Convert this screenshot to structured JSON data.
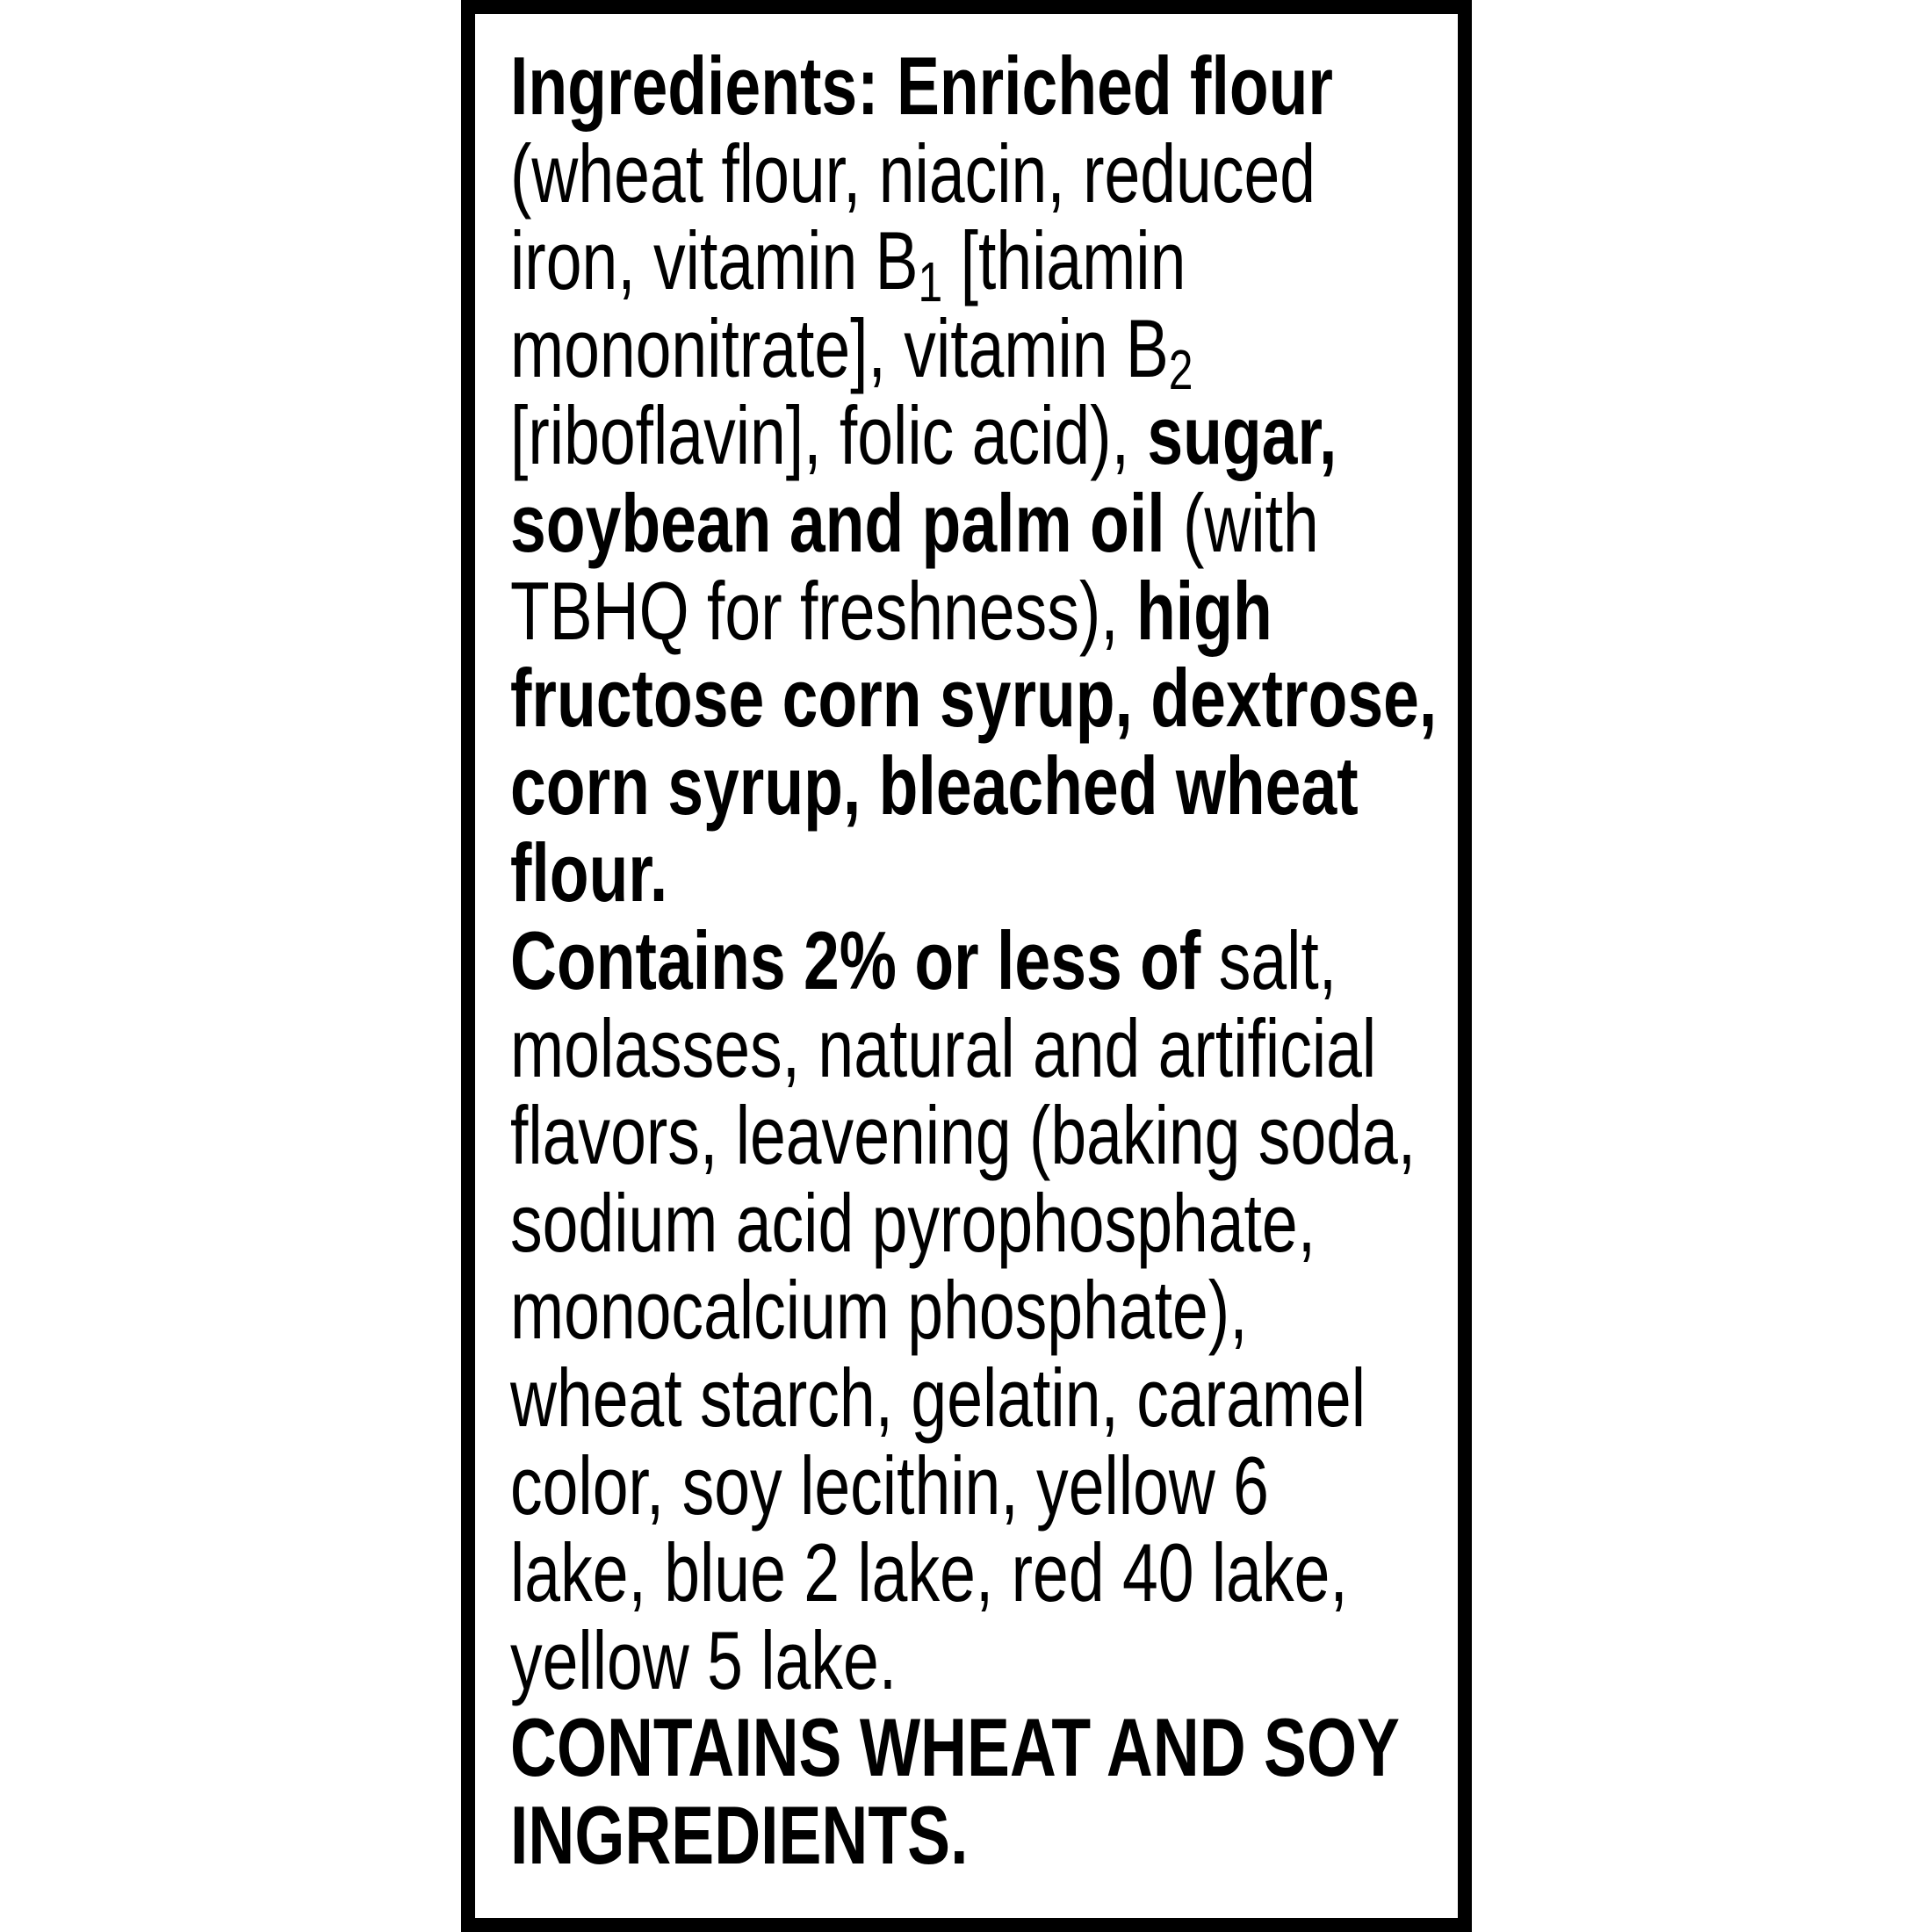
{
  "label": {
    "name": "ingredients-panel",
    "colors": {
      "text": "#000000",
      "background": "#ffffff",
      "border": "#000000"
    },
    "lines": [
      {
        "segments": [
          {
            "text": "Ingredients: Enriched flour",
            "bold": true
          }
        ]
      },
      {
        "segments": [
          {
            "text": "(wheat flour, niacin, reduced",
            "bold": false
          }
        ]
      },
      {
        "segments": [
          {
            "text": "iron, vitamin B",
            "bold": false
          },
          {
            "text": "1",
            "bold": false,
            "sub": true
          },
          {
            "text": " [thiamin",
            "bold": false
          }
        ]
      },
      {
        "segments": [
          {
            "text": "mononitrate], vitamin B",
            "bold": false
          },
          {
            "text": "2",
            "bold": false,
            "sub": true
          }
        ]
      },
      {
        "segments": [
          {
            "text": "[riboflavin], folic acid), ",
            "bold": false
          },
          {
            "text": "sugar,",
            "bold": true
          }
        ]
      },
      {
        "segments": [
          {
            "text": "soybean and palm oil",
            "bold": true
          },
          {
            "text": " (with",
            "bold": false
          }
        ]
      },
      {
        "segments": [
          {
            "text": "TBHQ for freshness), ",
            "bold": false
          },
          {
            "text": "high",
            "bold": true
          }
        ]
      },
      {
        "segments": [
          {
            "text": "fructose corn syrup, dextrose,",
            "bold": true
          }
        ]
      },
      {
        "segments": [
          {
            "text": "corn syrup, bleached wheat",
            "bold": true
          }
        ]
      },
      {
        "segments": [
          {
            "text": "flour.",
            "bold": true
          }
        ]
      },
      {
        "segments": [
          {
            "text": "Contains 2% or less of",
            "bold": true
          },
          {
            "text": " salt,",
            "bold": false
          }
        ]
      },
      {
        "segments": [
          {
            "text": "molasses, natural and artificial",
            "bold": false
          }
        ]
      },
      {
        "segments": [
          {
            "text": "flavors, leavening (baking soda,",
            "bold": false
          }
        ]
      },
      {
        "segments": [
          {
            "text": "sodium acid pyrophosphate,",
            "bold": false
          }
        ]
      },
      {
        "segments": [
          {
            "text": "monocalcium phosphate),",
            "bold": false
          }
        ]
      },
      {
        "segments": [
          {
            "text": "wheat starch, gelatin, caramel",
            "bold": false
          }
        ]
      },
      {
        "segments": [
          {
            "text": "color, soy lecithin, yellow 6",
            "bold": false
          }
        ]
      },
      {
        "segments": [
          {
            "text": "lake, blue 2 lake, red 40 lake,",
            "bold": false
          }
        ]
      },
      {
        "segments": [
          {
            "text": "yellow 5 lake.",
            "bold": false
          }
        ]
      },
      {
        "segments": [
          {
            "text": "CONTAINS WHEAT AND SOY",
            "bold": true
          }
        ]
      },
      {
        "segments": [
          {
            "text": "INGREDIENTS.",
            "bold": true
          }
        ]
      }
    ]
  }
}
